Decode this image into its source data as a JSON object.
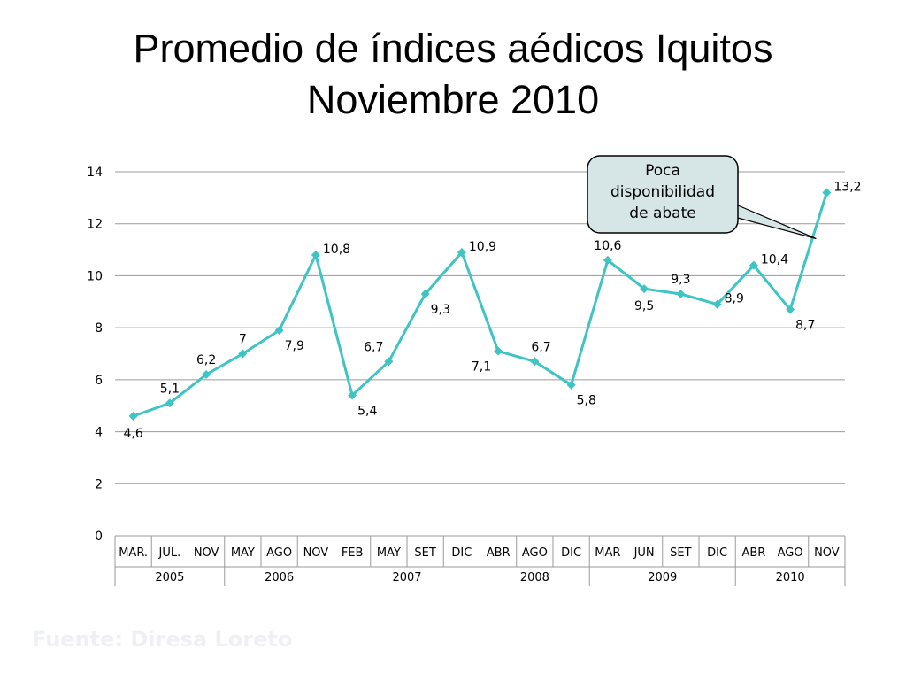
{
  "slide": {
    "title_line1": "Promedio de índices aédicos Iquitos",
    "title_line2": "Noviembre 2010",
    "footer": "Fuente: Diresa Loreto"
  },
  "chart_data": {
    "type": "line",
    "categories": [
      "MAR.",
      "JUL.",
      "NOV",
      "MAY",
      "AGO",
      "NOV",
      "FEB",
      "MAY",
      "SET",
      "DIC",
      "ABR",
      "AGO",
      "DIC",
      "MAR",
      "JUN",
      "SET",
      "DIC",
      "ABR",
      "AGO",
      "NOV"
    ],
    "years": [
      {
        "label": "2005",
        "span": 3
      },
      {
        "label": "2006",
        "span": 3
      },
      {
        "label": "2007",
        "span": 4
      },
      {
        "label": "2008",
        "span": 3
      },
      {
        "label": "2009",
        "span": 4
      },
      {
        "label": "2010",
        "span": 3
      }
    ],
    "values": [
      4.6,
      5.1,
      6.2,
      7,
      7.9,
      10.8,
      5.4,
      6.7,
      9.3,
      10.9,
      7.1,
      6.7,
      5.8,
      10.6,
      9.5,
      9.3,
      8.9,
      10.4,
      8.7,
      13.2
    ],
    "data_labels": [
      "4,6",
      "5,1",
      "6,2",
      "7",
      "7,9",
      "10,8",
      "5,4",
      "6,7",
      "9,3",
      "10,9",
      "7,1",
      "6,7",
      "5,8",
      "10,6",
      "9,5",
      "9,3",
      "8,9",
      "10,4",
      "8,7",
      "13,2"
    ],
    "label_placement": [
      "below",
      "above",
      "above",
      "above",
      "below-right",
      "right",
      "below-right",
      "above-left",
      "below-right",
      "right",
      "below-left",
      "above-right",
      "below-right",
      "above",
      "below",
      "above",
      "right",
      "right",
      "below-right",
      "right"
    ],
    "ylim": [
      0,
      14
    ],
    "yticks": [
      0,
      2,
      4,
      6,
      8,
      10,
      12,
      14
    ],
    "grid": true,
    "line_color": "#3fc4c4",
    "callout": {
      "lines": [
        "Poca",
        "disponibilidad",
        "de abate"
      ],
      "fill": "#d6e6e6",
      "points_to_index": 19
    }
  }
}
